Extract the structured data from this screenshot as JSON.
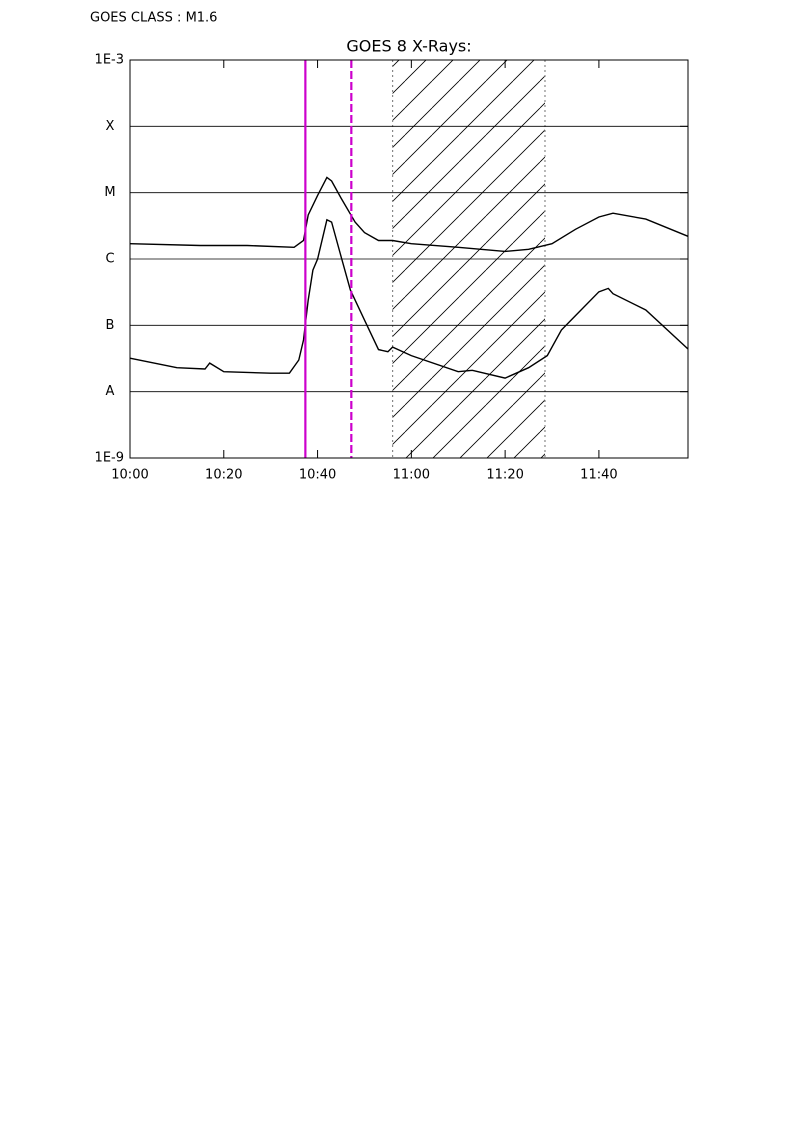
{
  "chart_data": {
    "type": "line",
    "header": "GOES CLASS : M1.6",
    "title": "GOES 8 X-Rays:",
    "xlim": [
      600,
      719
    ],
    "xticks": [
      {
        "value": 600,
        "label": "10:00"
      },
      {
        "value": 620,
        "label": "10:20"
      },
      {
        "value": 640,
        "label": "10:40"
      },
      {
        "value": 660,
        "label": "11:00"
      },
      {
        "value": 680,
        "label": "11:20"
      },
      {
        "value": 700,
        "label": "11:40"
      }
    ],
    "ylim": [
      1e-09,
      0.001
    ],
    "yscale": "log",
    "yticks": [
      {
        "value": 0.001,
        "label": "1E-3"
      },
      {
        "value": 0.0001,
        "label": "X"
      },
      {
        "value": 1e-05,
        "label": "M"
      },
      {
        "value": 1e-06,
        "label": "C"
      },
      {
        "value": 1e-07,
        "label": "B"
      },
      {
        "value": 1e-08,
        "label": "A"
      },
      {
        "value": 1e-09,
        "label": "1E-9"
      }
    ],
    "grid": true,
    "series": [
      {
        "color": "#000000",
        "x": [
          600,
          615,
          625,
          635,
          637,
          638,
          640,
          642,
          643,
          645,
          648,
          650,
          653,
          656,
          660,
          670,
          680,
          685,
          690,
          695,
          700,
          703,
          710,
          719
        ],
        "values": [
          1.7e-06,
          1.6e-06,
          1.6e-06,
          1.5e-06,
          1.9e-06,
          4.6e-06,
          9.1e-06,
          1.7e-05,
          1.5e-05,
          8.3e-06,
          3.6e-06,
          2.5e-06,
          1.9e-06,
          1.9e-06,
          1.7e-06,
          1.5e-06,
          1.3e-06,
          1.4e-06,
          1.7e-06,
          2.8e-06,
          4.3e-06,
          4.9e-06,
          4e-06,
          2.2e-06
        ]
      },
      {
        "color": "#000000",
        "x": [
          600,
          610,
          616,
          617,
          620,
          630,
          634,
          636,
          637,
          638,
          639,
          640,
          642,
          643,
          645,
          647,
          650,
          653,
          655,
          656,
          660,
          670,
          673,
          680,
          685,
          689,
          692,
          695,
          700,
          702,
          703,
          710,
          719
        ],
        "values": [
          3.2e-08,
          2.3e-08,
          2.2e-08,
          2.7e-08,
          2e-08,
          1.9e-08,
          1.9e-08,
          3e-08,
          6e-08,
          2.4e-07,
          6.8e-07,
          1e-06,
          3.9e-06,
          3.6e-06,
          1.1e-06,
          3.4e-07,
          1.2e-07,
          4.3e-08,
          4e-08,
          4.7e-08,
          3.5e-08,
          2e-08,
          2.1e-08,
          1.6e-08,
          2.3e-08,
          3.5e-08,
          8.5e-08,
          1.4e-07,
          3.2e-07,
          3.6e-07,
          3e-07,
          1.7e-07,
          4.4e-08
        ]
      }
    ],
    "markers": [
      {
        "x": 637.4,
        "color": "#cc00cc",
        "style": "solid"
      },
      {
        "x": 647.2,
        "color": "#cc00cc",
        "style": "dashed"
      }
    ],
    "hatch": {
      "x": [
        656,
        688.5
      ],
      "color": "#888888"
    }
  }
}
